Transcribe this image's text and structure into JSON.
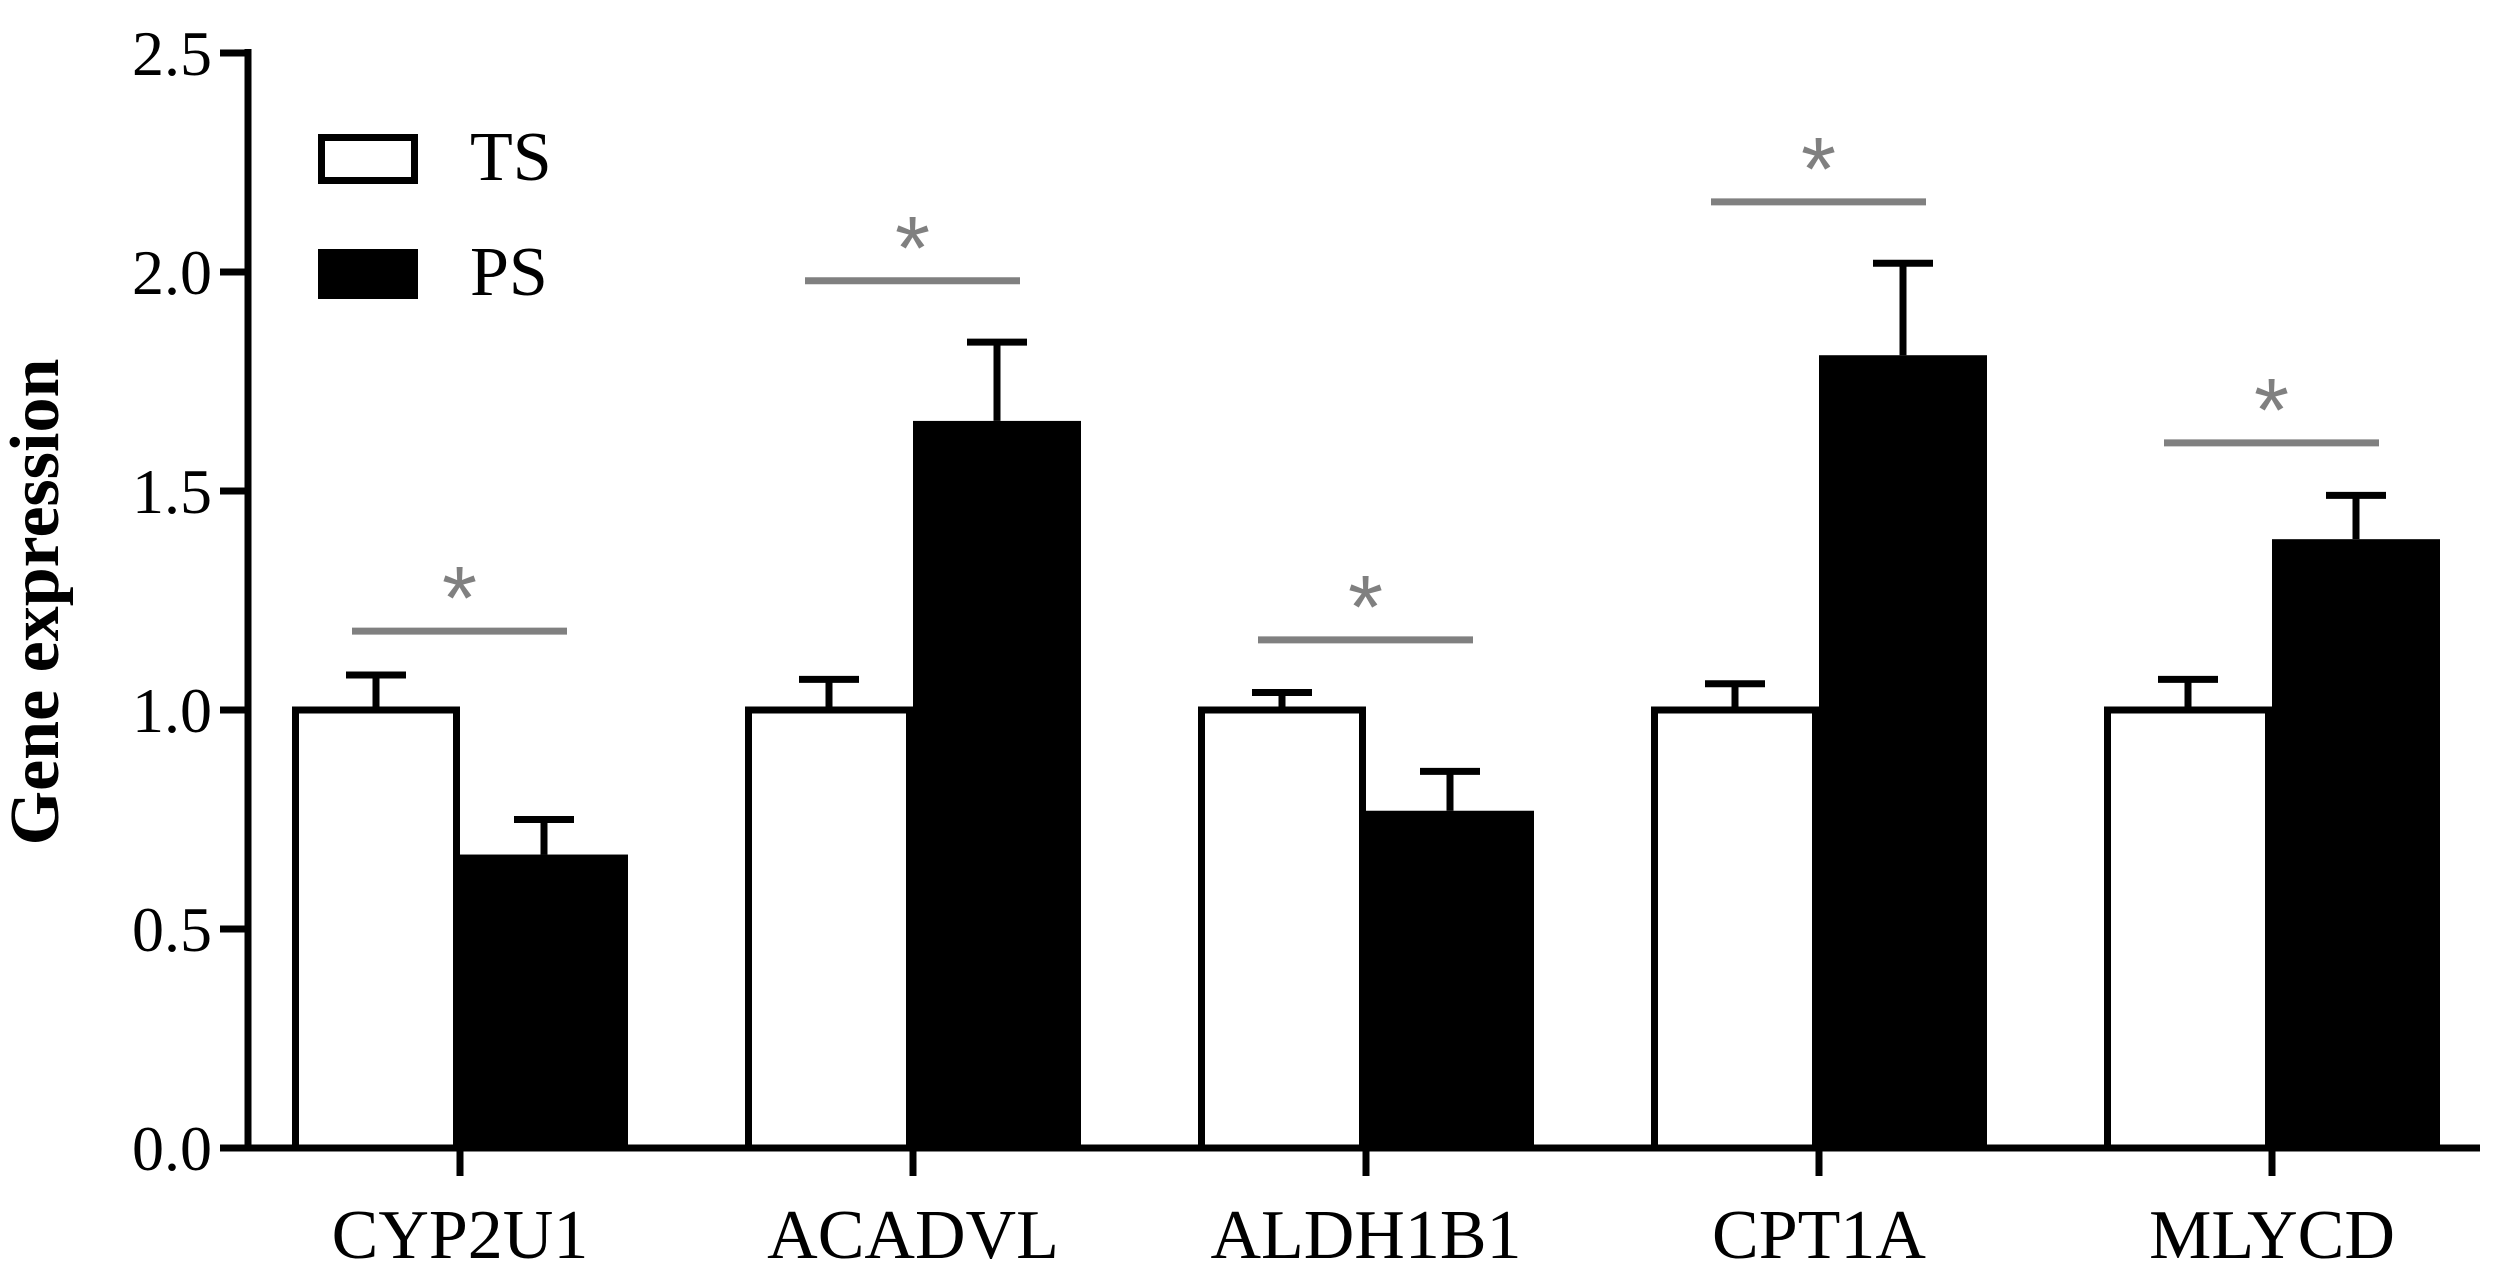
{
  "chart_data": {
    "type": "bar",
    "title": "",
    "xlabel": "",
    "ylabel": "Gene expression",
    "ylim": [
      0,
      2.5
    ],
    "yticks": [
      "0.0",
      "0.5",
      "1.0",
      "1.5",
      "2.0",
      "2.5"
    ],
    "categories": [
      "CYP2U1",
      "ACADVL",
      "ALDH1B1",
      "CPT1A",
      "MLYCD"
    ],
    "series": [
      {
        "name": "TS",
        "color": "#ffffff",
        "values": [
          1.0,
          1.0,
          1.0,
          1.0,
          1.0
        ],
        "errors": [
          0.08,
          0.07,
          0.04,
          0.06,
          0.07
        ]
      },
      {
        "name": "PS",
        "color": "#000000",
        "values": [
          0.67,
          1.66,
          0.77,
          1.81,
          1.39
        ],
        "errors": [
          0.08,
          0.18,
          0.09,
          0.21,
          0.1
        ]
      }
    ],
    "significance": [
      {
        "category": "CYP2U1",
        "label": "*",
        "line_y": 1.18
      },
      {
        "category": "ACADVL",
        "label": "*",
        "line_y": 1.98
      },
      {
        "category": "ALDH1B1",
        "label": "*",
        "line_y": 1.16
      },
      {
        "category": "CPT1A",
        "label": "*",
        "line_y": 2.16
      },
      {
        "category": "MLYCD",
        "label": "*",
        "line_y": 1.61
      }
    ],
    "legend": {
      "position": "top-left"
    },
    "grid": false
  }
}
